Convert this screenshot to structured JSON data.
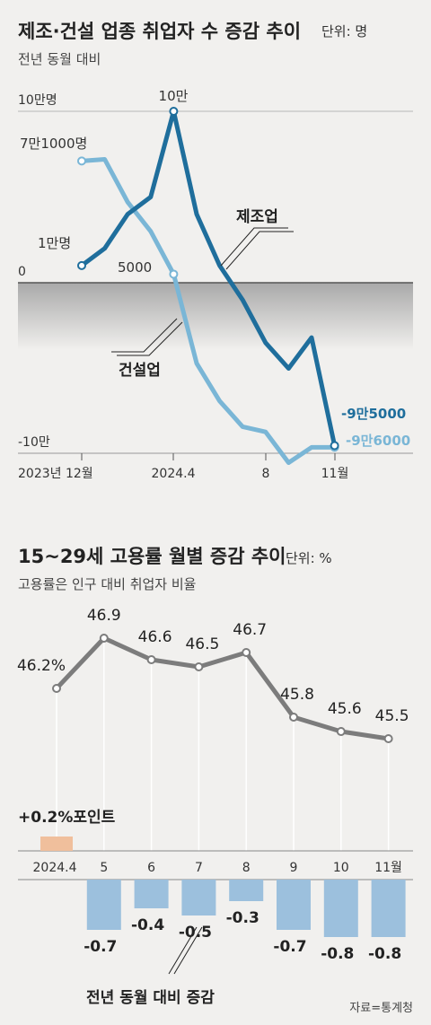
{
  "chart_data": [
    {
      "type": "line",
      "title": "제조·건설 업종 취업자 수 증감 추이",
      "unit": "단위: 명",
      "subtitle": "전년 동월 대비",
      "x_ticks": [
        "2023년 12월",
        "2024.4",
        "8",
        "11월"
      ],
      "y_ticks": [
        "10만명",
        "0",
        "-10만"
      ],
      "ylim": [
        -100000,
        100000
      ],
      "series": [
        {
          "name": "제조업",
          "color": "#1f6e9c",
          "values": [
            10000,
            20000,
            40000,
            50000,
            100000,
            40000,
            10000,
            -10000,
            -35000,
            -50000,
            -32000,
            -95000
          ],
          "labels": {
            "first": "1만명",
            "peak": "10만",
            "last": "-9만5000"
          }
        },
        {
          "name": "건설업",
          "color": "#7ab6d6",
          "values": [
            71000,
            72000,
            47000,
            30000,
            5000,
            -47000,
            -69000,
            -84000,
            -87000,
            -105000,
            -96000,
            -96000
          ],
          "labels": {
            "first": "7만1000명",
            "mid": "5000",
            "last": "-9만6000"
          }
        }
      ]
    },
    {
      "type": "line",
      "title": "15~29세 고용률 월별 증감 추이",
      "unit": "단위: %",
      "subtitle": "고용률은 인구 대비 취업자 비율",
      "categories": [
        "2024.4",
        "5",
        "6",
        "7",
        "8",
        "9",
        "10",
        "11월"
      ],
      "values": [
        46.2,
        46.9,
        46.6,
        46.5,
        46.7,
        45.8,
        45.6,
        45.5
      ],
      "value_labels": [
        "46.2%",
        "46.9",
        "46.6",
        "46.5",
        "46.7",
        "45.8",
        "45.6",
        "45.5"
      ],
      "yoy_change": [
        0.2,
        -0.7,
        -0.4,
        -0.5,
        -0.3,
        -0.7,
        -0.8,
        -0.8
      ],
      "yoy_labels": [
        "+0.2%포인트",
        "-0.7",
        "-0.4",
        "-0.5",
        "-0.3",
        "-0.7",
        "-0.8",
        "-0.8"
      ],
      "yoy_caption": "전년 동월 대비 증감",
      "colors": {
        "line": "#7c7c7c",
        "positive_bar": "#f0bf9c",
        "negative_bar": "#9cc0dd"
      }
    }
  ],
  "source": "자료=통계청"
}
